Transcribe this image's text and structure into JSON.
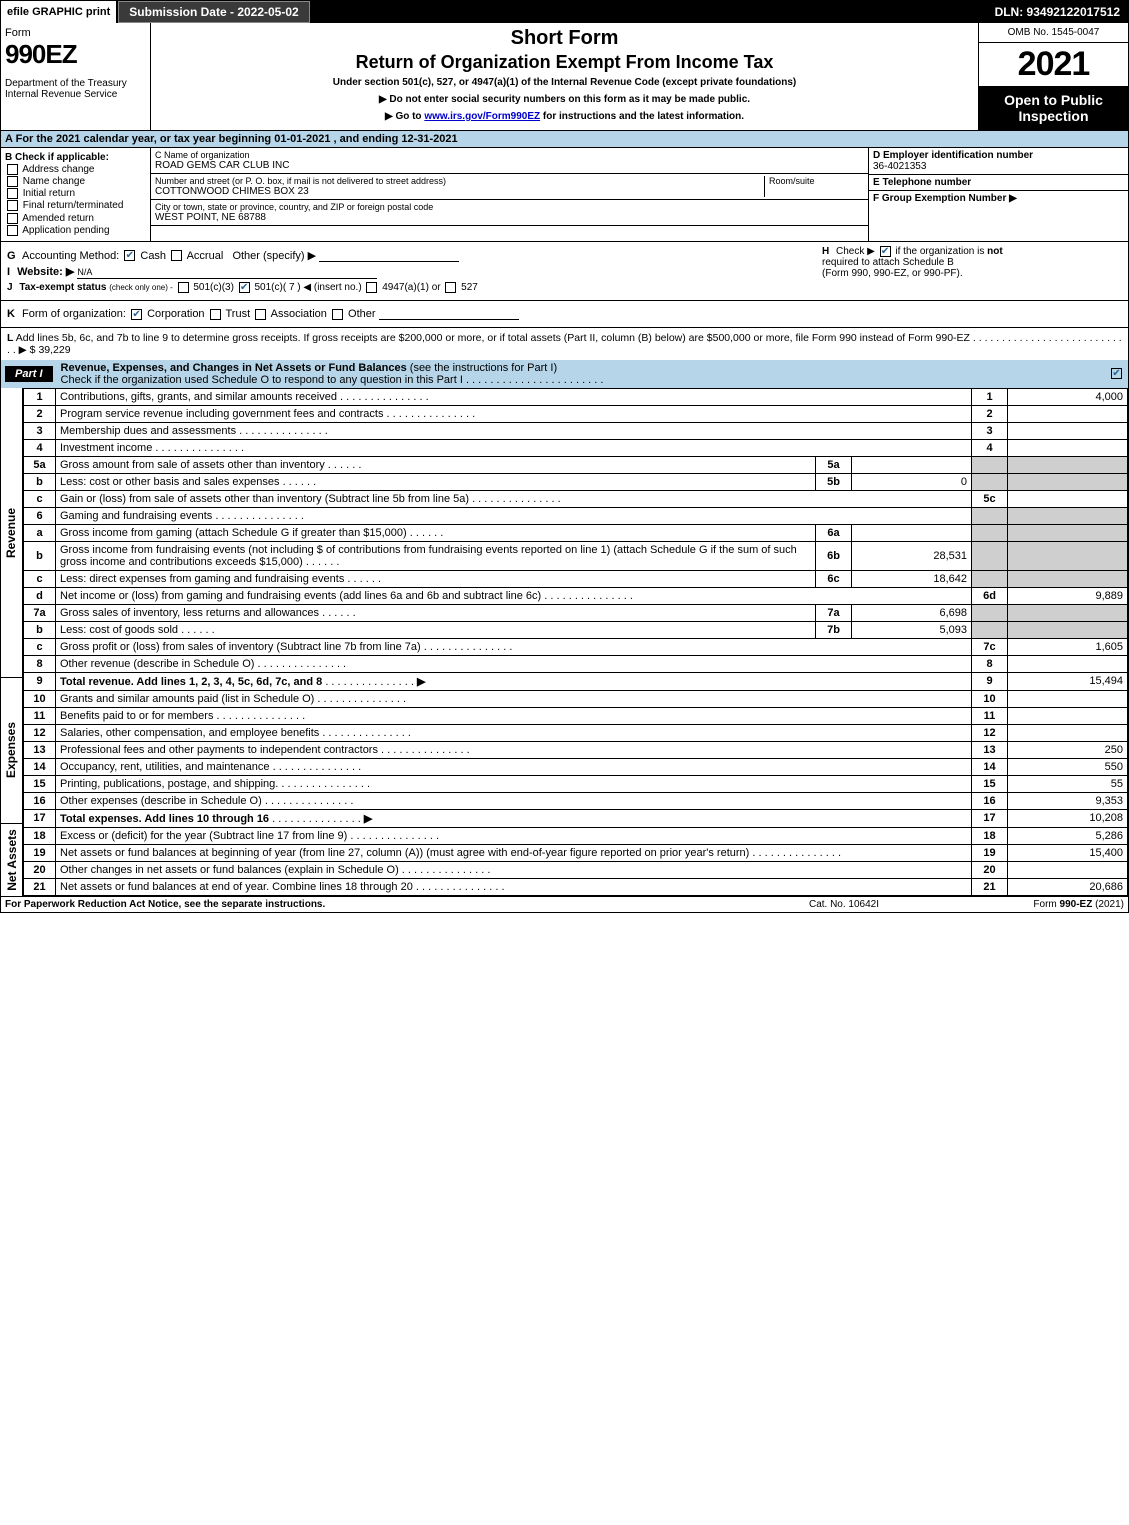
{
  "topbar": {
    "efile": "efile GRAPHIC print",
    "submission": "Submission Date - 2022-05-02",
    "dln": "DLN: 93492122017512"
  },
  "header": {
    "form_word": "Form",
    "form_num": "990EZ",
    "dept": "Department of the Treasury\nInternal Revenue Service",
    "title1": "Short Form",
    "title2": "Return of Organization Exempt From Income Tax",
    "subtitle": "Under section 501(c), 527, or 4947(a)(1) of the Internal Revenue Code (except private foundations)",
    "instr1": "▶ Do not enter social security numbers on this form as it may be made public.",
    "instr2_pre": "▶ Go to ",
    "instr2_link": "www.irs.gov/Form990EZ",
    "instr2_post": " for instructions and the latest information.",
    "omb": "OMB No. 1545-0047",
    "year": "2021",
    "open": "Open to Public Inspection"
  },
  "lineA": {
    "lead": "A",
    "text": "For the 2021 calendar year, or tax year beginning 01-01-2021 , and ending 12-31-2021"
  },
  "B": {
    "label": "B  Check if applicable:",
    "items": [
      "Address change",
      "Name change",
      "Initial return",
      "Final return/terminated",
      "Amended return",
      "Application pending"
    ]
  },
  "C": {
    "name_hint": "C Name of organization",
    "name": "ROAD GEMS CAR CLUB INC",
    "street_hint": "Number and street (or P. O. box, if mail is not delivered to street address)",
    "room_hint": "Room/suite",
    "street": "COTTONWOOD CHIMES BOX 23",
    "city_hint": "City or town, state or province, country, and ZIP or foreign postal code",
    "city": "WEST POINT, NE  68788"
  },
  "D": {
    "label": "D Employer identification number",
    "value": "36-4021353"
  },
  "E": {
    "label": "E Telephone number",
    "value": ""
  },
  "F": {
    "label": "F Group Exemption Number  ▶",
    "value": ""
  },
  "G": {
    "lead": "G",
    "label": "Accounting Method:",
    "cash": "Cash",
    "accrual": "Accrual",
    "other": "Other (specify) ▶"
  },
  "H": {
    "lead": "H",
    "text1": "Check ▶",
    "text2": "if the organization is",
    "not": "not",
    "text3": "required to attach Schedule B",
    "text4": "(Form 990, 990-EZ, or 990-PF)."
  },
  "I": {
    "lead": "I",
    "label": "Website: ▶",
    "value": "N/A"
  },
  "J": {
    "lead": "J",
    "label": "Tax-exempt status",
    "sub": "(check only one) -",
    "o1": "501(c)(3)",
    "o2": "501(c)( 7 ) ◀ (insert no.)",
    "o3": "4947(a)(1) or",
    "o4": "527"
  },
  "K": {
    "lead": "K",
    "label": "Form of organization:",
    "o1": "Corporation",
    "o2": "Trust",
    "o3": "Association",
    "o4": "Other"
  },
  "L": {
    "lead": "L",
    "text": "Add lines 5b, 6c, and 7b to line 9 to determine gross receipts. If gross receipts are $200,000 or more, or if total assets (Part II, column (B) below) are $500,000 or more, file Form 990 instead of Form 990-EZ",
    "amount_label": "▶ $",
    "amount": "39,229"
  },
  "partI": {
    "tag": "Part I",
    "title": "Revenue, Expenses, and Changes in Net Assets or Fund Balances",
    "subtitle": "(see the instructions for Part I)",
    "checkline": "Check if the organization used Schedule O to respond to any question in this Part I",
    "check": true,
    "sections": {
      "revenue_label": "Revenue",
      "expenses_label": "Expenses",
      "netassets_label": "Net Assets"
    },
    "rows": [
      {
        "n": "1",
        "desc": "Contributions, gifts, grants, and similar amounts received",
        "box": "1",
        "amt": "4,000"
      },
      {
        "n": "2",
        "desc": "Program service revenue including government fees and contracts",
        "box": "2",
        "amt": ""
      },
      {
        "n": "3",
        "desc": "Membership dues and assessments",
        "box": "3",
        "amt": ""
      },
      {
        "n": "4",
        "desc": "Investment income",
        "box": "4",
        "amt": ""
      },
      {
        "n": "5a",
        "desc": "Gross amount from sale of assets other than inventory",
        "mid": "5a",
        "midval": "",
        "box": "",
        "amt": "",
        "greybox": true
      },
      {
        "n": "b",
        "desc": "Less: cost or other basis and sales expenses",
        "mid": "5b",
        "midval": "0",
        "box": "",
        "amt": "",
        "greybox": true
      },
      {
        "n": "c",
        "desc": "Gain or (loss) from sale of assets other than inventory (Subtract line 5b from line 5a)",
        "box": "5c",
        "amt": ""
      },
      {
        "n": "6",
        "desc": "Gaming and fundraising events",
        "box": "",
        "amt": "",
        "greybox": true,
        "noboxnum": true
      },
      {
        "n": "a",
        "desc": "Gross income from gaming (attach Schedule G if greater than $15,000)",
        "mid": "6a",
        "midval": "",
        "box": "",
        "amt": "",
        "greybox": true
      },
      {
        "n": "b",
        "desc": "Gross income from fundraising events (not including $                    of contributions from fundraising events reported on line 1) (attach Schedule G if the sum of such gross income and contributions exceeds $15,000)",
        "mid": "6b",
        "midval": "28,531",
        "box": "",
        "amt": "",
        "greybox": true
      },
      {
        "n": "c",
        "desc": "Less: direct expenses from gaming and fundraising events",
        "mid": "6c",
        "midval": "18,642",
        "box": "",
        "amt": "",
        "greybox": true
      },
      {
        "n": "d",
        "desc": "Net income or (loss) from gaming and fundraising events (add lines 6a and 6b and subtract line 6c)",
        "box": "6d",
        "amt": "9,889"
      },
      {
        "n": "7a",
        "desc": "Gross sales of inventory, less returns and allowances",
        "mid": "7a",
        "midval": "6,698",
        "box": "",
        "amt": "",
        "greybox": true
      },
      {
        "n": "b",
        "desc": "Less: cost of goods sold",
        "mid": "7b",
        "midval": "5,093",
        "box": "",
        "amt": "",
        "greybox": true
      },
      {
        "n": "c",
        "desc": "Gross profit or (loss) from sales of inventory (Subtract line 7b from line 7a)",
        "box": "7c",
        "amt": "1,605"
      },
      {
        "n": "8",
        "desc": "Other revenue (describe in Schedule O)",
        "box": "8",
        "amt": ""
      },
      {
        "n": "9",
        "desc": "Total revenue. Add lines 1, 2, 3, 4, 5c, 6d, 7c, and 8",
        "box": "9",
        "amt": "15,494",
        "bold": true,
        "arrow": true
      },
      {
        "n": "10",
        "desc": "Grants and similar amounts paid (list in Schedule O)",
        "box": "10",
        "amt": ""
      },
      {
        "n": "11",
        "desc": "Benefits paid to or for members",
        "box": "11",
        "amt": ""
      },
      {
        "n": "12",
        "desc": "Salaries, other compensation, and employee benefits",
        "box": "12",
        "amt": ""
      },
      {
        "n": "13",
        "desc": "Professional fees and other payments to independent contractors",
        "box": "13",
        "amt": "250"
      },
      {
        "n": "14",
        "desc": "Occupancy, rent, utilities, and maintenance",
        "box": "14",
        "amt": "550"
      },
      {
        "n": "15",
        "desc": "Printing, publications, postage, and shipping.",
        "box": "15",
        "amt": "55"
      },
      {
        "n": "16",
        "desc": "Other expenses (describe in Schedule O)",
        "box": "16",
        "amt": "9,353"
      },
      {
        "n": "17",
        "desc": "Total expenses. Add lines 10 through 16",
        "box": "17",
        "amt": "10,208",
        "bold": true,
        "arrow": true
      },
      {
        "n": "18",
        "desc": "Excess or (deficit) for the year (Subtract line 17 from line 9)",
        "box": "18",
        "amt": "5,286"
      },
      {
        "n": "19",
        "desc": "Net assets or fund balances at beginning of year (from line 27, column (A)) (must agree with end-of-year figure reported on prior year's return)",
        "box": "19",
        "amt": "15,400"
      },
      {
        "n": "20",
        "desc": "Other changes in net assets or fund balances (explain in Schedule O)",
        "box": "20",
        "amt": ""
      },
      {
        "n": "21",
        "desc": "Net assets or fund balances at end of year. Combine lines 18 through 20",
        "box": "21",
        "amt": "20,686"
      }
    ],
    "section_split": {
      "revenue_end": 16,
      "expenses_end": 24
    }
  },
  "footer": {
    "left": "For Paperwork Reduction Act Notice, see the separate instructions.",
    "center": "Cat. No. 10642I",
    "right_pre": "Form ",
    "right_bold": "990-EZ",
    "right_post": " (2021)"
  },
  "colors": {
    "blue_bg": "#b6d5e8",
    "check_color": "#2a6496",
    "link": "#0000cc"
  }
}
